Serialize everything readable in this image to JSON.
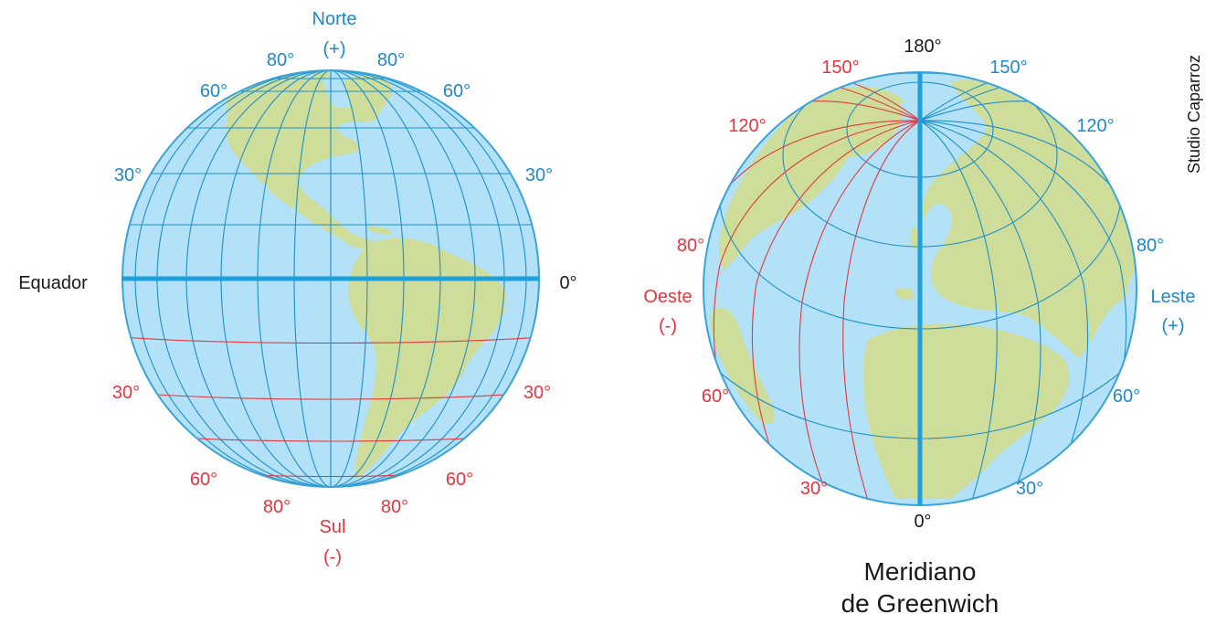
{
  "colors": {
    "ocean": "#b3e1f7",
    "land": "#cfdd9b",
    "grid_blue": "#1e90c8",
    "grid_red": "#e03a3e",
    "positive": "#1f88c9",
    "negative": "#e8333c",
    "text": "#1a1a1a"
  },
  "left_globe": {
    "north_label": "Norte",
    "north_sign": "(+)",
    "south_label": "Sul",
    "south_sign": "(-)",
    "equator_label": "Equador",
    "equator_degree": "0°",
    "north_latitudes": [
      "80°",
      "60°",
      "30°"
    ],
    "south_latitudes": [
      "30°",
      "60°",
      "80°"
    ]
  },
  "right_globe": {
    "top_degree": "180°",
    "bottom_degree": "0°",
    "west_label": "Oeste",
    "west_sign": "(-)",
    "east_label": "Leste",
    "east_sign": "(+)",
    "west_longitudes": [
      "150°",
      "120°",
      "80°",
      "60°",
      "30°"
    ],
    "east_longitudes": [
      "150°",
      "120°",
      "80°",
      "60°",
      "30°"
    ],
    "meridian_title_line1": "Meridiano",
    "meridian_title_line2": "de Greenwich"
  },
  "credit": "Studio Caparroz"
}
